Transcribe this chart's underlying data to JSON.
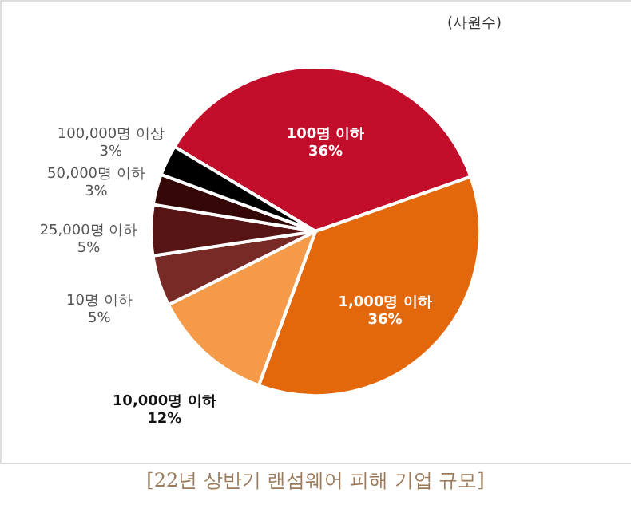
{
  "chart_data": {
    "type": "pie",
    "title": "[22년 상반기 랜섬웨어 피해 기업 규모]",
    "categories": [
      "100명 이하",
      "1,000명 이하",
      "10,000명 이하",
      "10명 이하",
      "25,000명 이하",
      "50,000명 이하",
      "100,000명 이상"
    ],
    "values": [
      36,
      36,
      12,
      5,
      5,
      3,
      3
    ],
    "value_labels": [
      "36%",
      "36%",
      "12%",
      "5%",
      "5%",
      "3%",
      "3%"
    ],
    "colors": [
      "#c20e2b",
      "#e3680c",
      "#f49a48",
      "#772a26",
      "#561414",
      "#350808",
      "#000000"
    ],
    "annotations": [
      "(사원수)"
    ],
    "legend": false
  }
}
